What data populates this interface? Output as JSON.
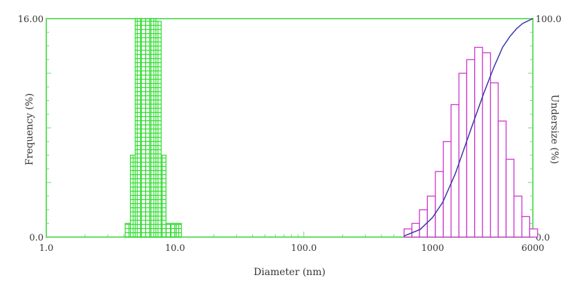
{
  "chart_data": {
    "type": "bar",
    "xlabel": "Diameter (nm)",
    "ylabel": "Frequency (%)",
    "y2label": "Undersize (%)",
    "x_scale": "log",
    "xlim": [
      1.0,
      6000
    ],
    "ylim": [
      0.0,
      16.0
    ],
    "y2lim": [
      0.0,
      100.0
    ],
    "x_tick_labels": [
      {
        "value": 1.0,
        "label": "1.0"
      },
      {
        "value": 10.0,
        "label": "10.0"
      },
      {
        "value": 100.0,
        "label": "100.0"
      },
      {
        "value": 1000,
        "label": "1000"
      },
      {
        "value": 6000,
        "label": "6000"
      }
    ],
    "y_tick_labels": [
      {
        "value": 16.0,
        "label": "16.00"
      },
      {
        "value": 0.0,
        "label": "0.0"
      }
    ],
    "y2_tick_labels": [
      {
        "value": 100.0,
        "label": "100.0"
      },
      {
        "value": 0.0,
        "label": "0.0"
      }
    ],
    "grid": false,
    "series": [
      {
        "kind": "histogram",
        "style": "hatched",
        "color": "#33dd33",
        "bins": [
          {
            "x0": 4.1,
            "x1": 4.5,
            "y": 1.0
          },
          {
            "x0": 4.5,
            "x1": 4.9,
            "y": 6.0
          },
          {
            "x0": 4.9,
            "x1": 5.4,
            "y": 16.0
          },
          {
            "x0": 5.4,
            "x1": 5.9,
            "y": 16.0
          },
          {
            "x0": 5.9,
            "x1": 6.5,
            "y": 16.0
          },
          {
            "x0": 6.5,
            "x1": 7.1,
            "y": 16.0
          },
          {
            "x0": 7.1,
            "x1": 7.8,
            "y": 15.8
          },
          {
            "x0": 7.8,
            "x1": 8.5,
            "y": 6.0
          },
          {
            "x0": 8.5,
            "x1": 9.3,
            "y": 1.0
          },
          {
            "x0": 9.3,
            "x1": 10.2,
            "y": 1.0
          },
          {
            "x0": 10.2,
            "x1": 11.2,
            "y": 1.0
          }
        ]
      },
      {
        "kind": "histogram",
        "style": "open",
        "color": "#cc33cc",
        "bins": [
          {
            "x0": 600,
            "x1": 690,
            "y": 0.6
          },
          {
            "x0": 690,
            "x1": 790,
            "y": 1.0
          },
          {
            "x0": 790,
            "x1": 910,
            "y": 2.0
          },
          {
            "x0": 910,
            "x1": 1050,
            "y": 3.0
          },
          {
            "x0": 1050,
            "x1": 1210,
            "y": 4.8
          },
          {
            "x0": 1210,
            "x1": 1390,
            "y": 7.0
          },
          {
            "x0": 1390,
            "x1": 1600,
            "y": 9.7
          },
          {
            "x0": 1600,
            "x1": 1840,
            "y": 12.0
          },
          {
            "x0": 1840,
            "x1": 2120,
            "y": 13.0
          },
          {
            "x0": 2120,
            "x1": 2440,
            "y": 13.9
          },
          {
            "x0": 2440,
            "x1": 2810,
            "y": 13.5
          },
          {
            "x0": 2810,
            "x1": 3230,
            "y": 11.3
          },
          {
            "x0": 3230,
            "x1": 3720,
            "y": 8.5
          },
          {
            "x0": 3720,
            "x1": 4280,
            "y": 5.7
          },
          {
            "x0": 4280,
            "x1": 4930,
            "y": 3.0
          },
          {
            "x0": 4930,
            "x1": 5670,
            "y": 1.5
          },
          {
            "x0": 5670,
            "x1": 6530,
            "y": 0.6
          }
        ]
      },
      {
        "kind": "cumulative",
        "axis": "y2",
        "color": "#3333aa",
        "x": [
          600,
          800,
          1000,
          1200,
          1500,
          2000,
          2500,
          3000,
          3500,
          4000,
          4500,
          5000,
          5500,
          6000
        ],
        "values": [
          0.5,
          3.5,
          9.0,
          16.0,
          29.0,
          50.0,
          66.0,
          78.0,
          87.0,
          92.0,
          95.5,
          97.8,
          99.0,
          100.0
        ]
      }
    ]
  }
}
